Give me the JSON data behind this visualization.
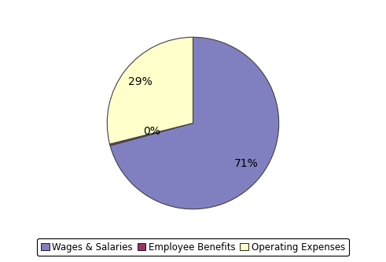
{
  "labels": [
    "Wages & Salaries",
    "Employee Benefits",
    "Operating Expenses"
  ],
  "values": [
    71,
    0.3,
    29
  ],
  "display_pcts": [
    "71%",
    "0%",
    "29%"
  ],
  "colors": [
    "#8080C0",
    "#993366",
    "#FFFFCC"
  ],
  "edgecolor": "#404040",
  "startangle": 90,
  "background_color": "#ffffff",
  "legend_edgecolor": "#000000",
  "autopct_fontsize": 10,
  "legend_fontsize": 8.5,
  "pct_distance": 0.78
}
